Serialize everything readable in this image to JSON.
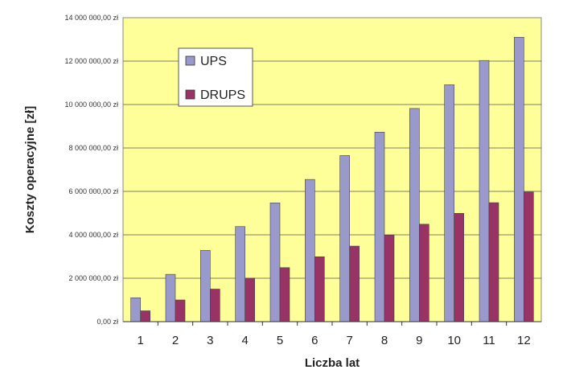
{
  "chart_data": {
    "type": "bar",
    "xlabel": "Liczba lat",
    "ylabel": "Koszty operacyjne [zł]",
    "categories": [
      "1",
      "2",
      "3",
      "4",
      "5",
      "6",
      "7",
      "8",
      "9",
      "10",
      "11",
      "12"
    ],
    "series": [
      {
        "name": "UPS",
        "color": "#9999cc",
        "values": [
          1100000,
          2180000,
          3280000,
          4380000,
          5470000,
          6550000,
          7650000,
          8730000,
          9820000,
          10910000,
          12030000,
          13100000
        ]
      },
      {
        "name": "DRUPS",
        "color": "#993366",
        "values": [
          500000,
          1000000,
          1500000,
          2000000,
          2490000,
          2990000,
          3480000,
          3990000,
          4490000,
          4990000,
          5480000,
          5970000
        ]
      }
    ],
    "ylim": [
      0,
      14000000
    ],
    "yticks": [
      0,
      2000000,
      4000000,
      6000000,
      8000000,
      10000000,
      12000000,
      14000000
    ],
    "ytick_labels": [
      "0,00 zł",
      "2 000 000,00 zł",
      "4 000 000,00 zł",
      "6 000 000,00 zł",
      "8 000 000,00 zł",
      "10 000 000,00 zł",
      "12 000 000,00 zł",
      "14 000 000,00 zł"
    ],
    "grid": true,
    "legend_position": "top-left",
    "plot_background": "#ffff99"
  }
}
